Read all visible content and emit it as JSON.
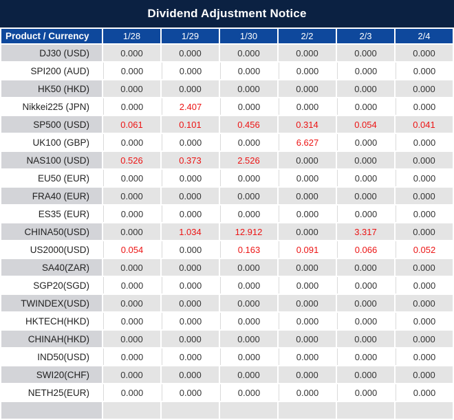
{
  "title": "Dividend Adjustment Notice",
  "header": {
    "product": "Product / Currency",
    "dates": [
      "1/28",
      "1/29",
      "1/30",
      "2/2",
      "2/3",
      "2/4"
    ]
  },
  "rows": [
    {
      "product": "DJ30 (USD)",
      "values": [
        "0.000",
        "0.000",
        "0.000",
        "0.000",
        "0.000",
        "0.000"
      ],
      "red": [
        false,
        false,
        false,
        false,
        false,
        false
      ]
    },
    {
      "product": "SPI200 (AUD)",
      "values": [
        "0.000",
        "0.000",
        "0.000",
        "0.000",
        "0.000",
        "0.000"
      ],
      "red": [
        false,
        false,
        false,
        false,
        false,
        false
      ]
    },
    {
      "product": "HK50 (HKD)",
      "values": [
        "0.000",
        "0.000",
        "0.000",
        "0.000",
        "0.000",
        "0.000"
      ],
      "red": [
        false,
        false,
        false,
        false,
        false,
        false
      ]
    },
    {
      "product": "Nikkei225 (JPN)",
      "values": [
        "0.000",
        "2.407",
        "0.000",
        "0.000",
        "0.000",
        "0.000"
      ],
      "red": [
        false,
        true,
        false,
        false,
        false,
        false
      ]
    },
    {
      "product": "SP500 (USD)",
      "values": [
        "0.061",
        "0.101",
        "0.456",
        "0.314",
        "0.054",
        "0.041"
      ],
      "red": [
        true,
        true,
        true,
        true,
        true,
        true
      ]
    },
    {
      "product": "UK100 (GBP)",
      "values": [
        "0.000",
        "0.000",
        "0.000",
        "6.627",
        "0.000",
        "0.000"
      ],
      "red": [
        false,
        false,
        false,
        true,
        false,
        false
      ]
    },
    {
      "product": "NAS100 (USD)",
      "values": [
        "0.526",
        "0.373",
        "2.526",
        "0.000",
        "0.000",
        "0.000"
      ],
      "red": [
        true,
        true,
        true,
        false,
        false,
        false
      ]
    },
    {
      "product": "EU50 (EUR)",
      "values": [
        "0.000",
        "0.000",
        "0.000",
        "0.000",
        "0.000",
        "0.000"
      ],
      "red": [
        false,
        false,
        false,
        false,
        false,
        false
      ]
    },
    {
      "product": "FRA40 (EUR)",
      "values": [
        "0.000",
        "0.000",
        "0.000",
        "0.000",
        "0.000",
        "0.000"
      ],
      "red": [
        false,
        false,
        false,
        false,
        false,
        false
      ]
    },
    {
      "product": "ES35 (EUR)",
      "values": [
        "0.000",
        "0.000",
        "0.000",
        "0.000",
        "0.000",
        "0.000"
      ],
      "red": [
        false,
        false,
        false,
        false,
        false,
        false
      ]
    },
    {
      "product": "CHINA50(USD)",
      "values": [
        "0.000",
        "1.034",
        "12.912",
        "0.000",
        "3.317",
        "0.000"
      ],
      "red": [
        false,
        true,
        true,
        false,
        true,
        false
      ]
    },
    {
      "product": "US2000(USD)",
      "values": [
        "0.054",
        "0.000",
        "0.163",
        "0.091",
        "0.066",
        "0.052"
      ],
      "red": [
        true,
        false,
        true,
        true,
        true,
        true
      ]
    },
    {
      "product": "SA40(ZAR)",
      "values": [
        "0.000",
        "0.000",
        "0.000",
        "0.000",
        "0.000",
        "0.000"
      ],
      "red": [
        false,
        false,
        false,
        false,
        false,
        false
      ]
    },
    {
      "product": "SGP20(SGD)",
      "values": [
        "0.000",
        "0.000",
        "0.000",
        "0.000",
        "0.000",
        "0.000"
      ],
      "red": [
        false,
        false,
        false,
        false,
        false,
        false
      ]
    },
    {
      "product": "TWINDEX(USD)",
      "values": [
        "0.000",
        "0.000",
        "0.000",
        "0.000",
        "0.000",
        "0.000"
      ],
      "red": [
        false,
        false,
        false,
        false,
        false,
        false
      ]
    },
    {
      "product": "HKTECH(HKD)",
      "values": [
        "0.000",
        "0.000",
        "0.000",
        "0.000",
        "0.000",
        "0.000"
      ],
      "red": [
        false,
        false,
        false,
        false,
        false,
        false
      ]
    },
    {
      "product": "CHINAH(HKD)",
      "values": [
        "0.000",
        "0.000",
        "0.000",
        "0.000",
        "0.000",
        "0.000"
      ],
      "red": [
        false,
        false,
        false,
        false,
        false,
        false
      ]
    },
    {
      "product": "IND50(USD)",
      "values": [
        "0.000",
        "0.000",
        "0.000",
        "0.000",
        "0.000",
        "0.000"
      ],
      "red": [
        false,
        false,
        false,
        false,
        false,
        false
      ]
    },
    {
      "product": "SWI20(CHF)",
      "values": [
        "0.000",
        "0.000",
        "0.000",
        "0.000",
        "0.000",
        "0.000"
      ],
      "red": [
        false,
        false,
        false,
        false,
        false,
        false
      ]
    },
    {
      "product": "NETH25(EUR)",
      "values": [
        "0.000",
        "0.000",
        "0.000",
        "0.000",
        "0.000",
        "0.000"
      ],
      "red": [
        false,
        false,
        false,
        false,
        false,
        false
      ]
    }
  ],
  "colors": {
    "title_bg": "#0b2142",
    "header_bg": "#0e489c",
    "stripe_label": "#d3d4d8",
    "stripe_data": "#e4e4e4",
    "value_red": "#ec1313"
  }
}
